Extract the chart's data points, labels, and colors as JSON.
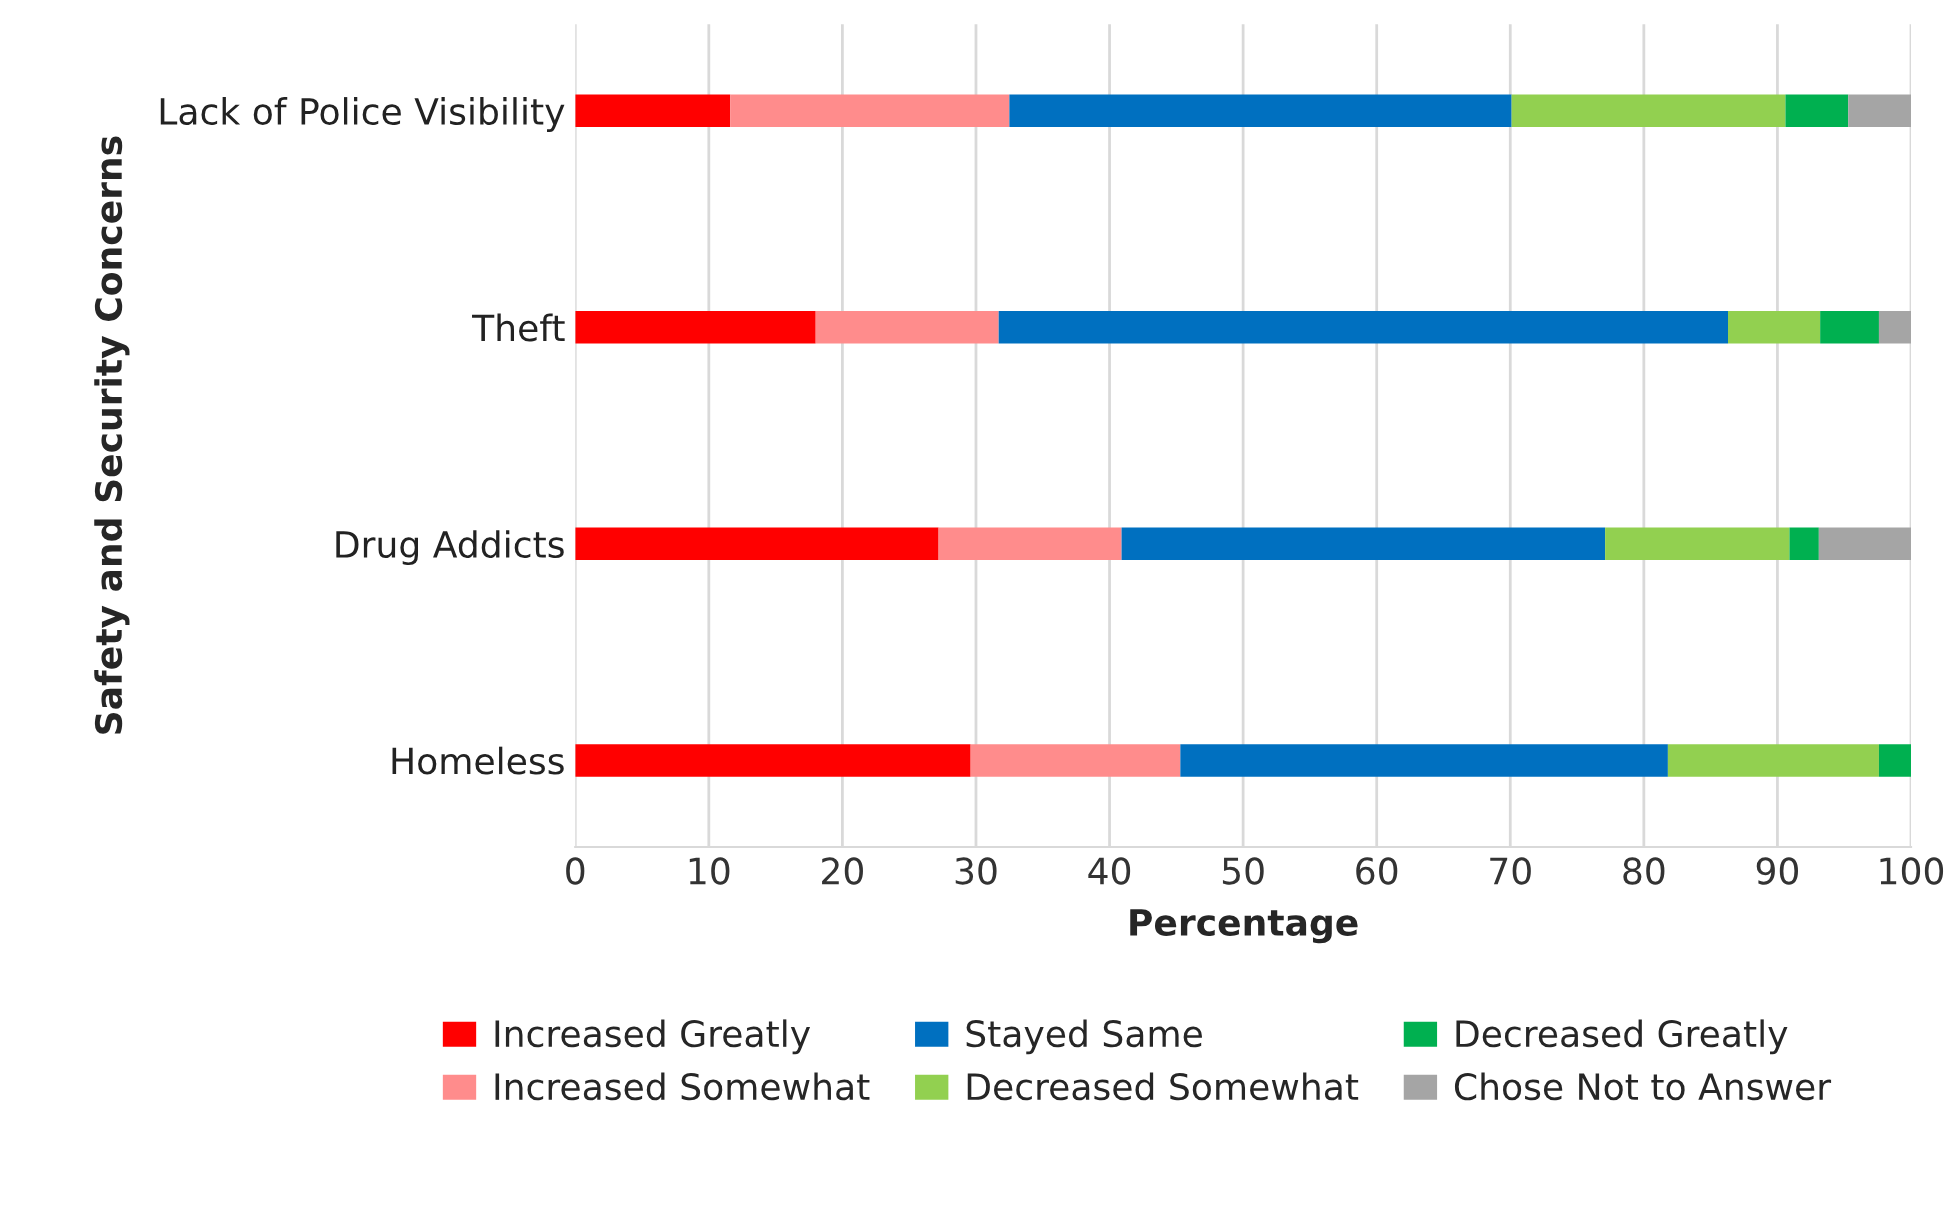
{
  "chart_data": {
    "type": "bar",
    "orientation": "horizontal",
    "stacked": true,
    "categories": [
      "Lack of Police Visibility",
      "Theft",
      "Drug Addicts",
      "Homeless"
    ],
    "xlabel": "Percentage",
    "ylabel": "Safety and Security Concerns",
    "xlim": [
      0,
      100
    ],
    "xticks": [
      0,
      10,
      20,
      30,
      40,
      50,
      60,
      70,
      80,
      90,
      100
    ],
    "grid": "x",
    "legend": "bottom",
    "series": [
      {
        "name": "Increased Greatly",
        "color": "#ff0000",
        "values": [
          11.6,
          18.0,
          27.2,
          29.6
        ]
      },
      {
        "name": "Increased Somewhat",
        "color": "#ff8c8c",
        "values": [
          20.9,
          13.7,
          13.7,
          15.7
        ]
      },
      {
        "name": "Stayed Same",
        "color": "#0070c0",
        "values": [
          37.6,
          54.6,
          36.2,
          36.5
        ]
      },
      {
        "name": "Decreased Somewhat",
        "color": "#92d050",
        "values": [
          20.5,
          6.9,
          13.8,
          15.8
        ]
      },
      {
        "name": "Decreased Greatly",
        "color": "#00b050",
        "values": [
          4.7,
          4.4,
          2.2,
          2.4
        ]
      },
      {
        "name": "Chose Not to Answer",
        "color": "#a5a5a5",
        "values": [
          4.7,
          2.4,
          6.9,
          0
        ]
      }
    ]
  }
}
